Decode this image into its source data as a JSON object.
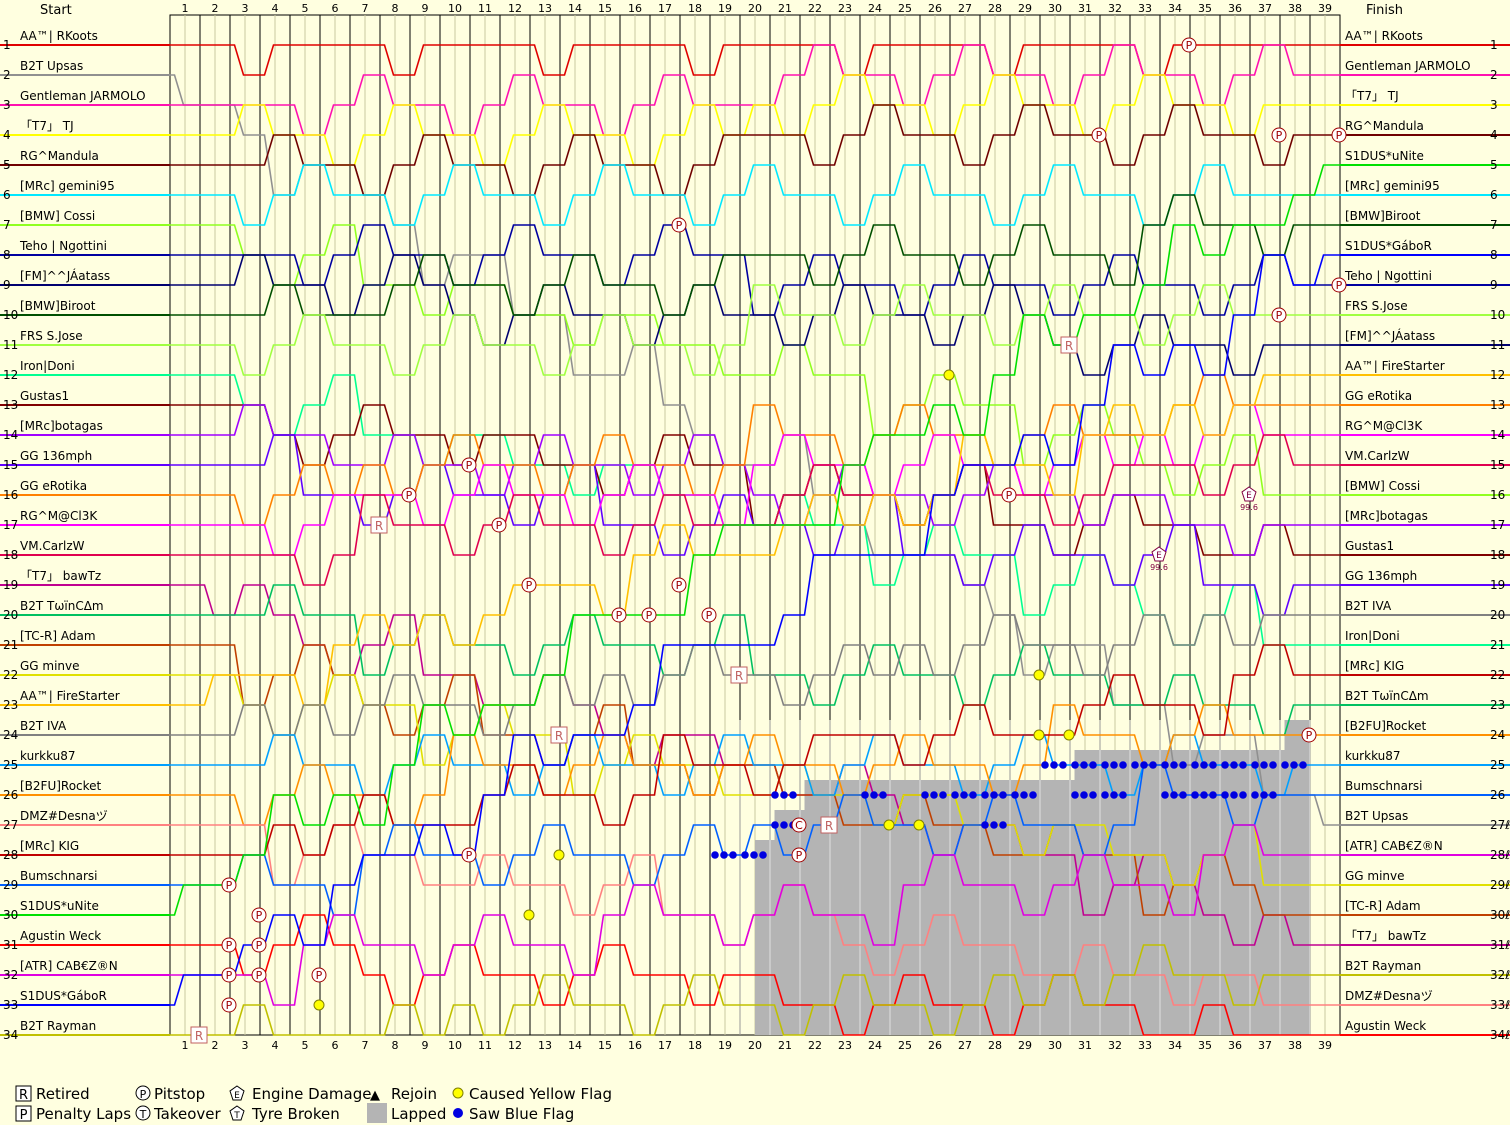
{
  "chart_data": {
    "type": "line",
    "title": "",
    "header_left": "Start",
    "header_right": "Finish",
    "laps": 39,
    "positions": 34,
    "start_order": [
      "AA™| RKoots",
      "B2T Upsas",
      "Gentleman JARMOLO",
      "「T7」 TJ",
      "RG^Mandula",
      "[MRc] gemini95",
      "[BMW] Cossi",
      "Teho | Ngottini",
      "[FM]^^JÁatass",
      "[BMW]Biroot",
      "FRS S.Jose",
      "Iron|Doni",
      "Gustas1",
      "[MRc]botagas",
      "GG 136mph",
      "GG eRotika",
      "RG^M@Cl3K",
      "VM.CarlzW",
      "「T7」 bawTz",
      "B2T TωïnCΔm",
      "[TC-R] Adam",
      "GG minve",
      "AA™| FireStarter",
      "B2T IVA",
      "kurkku87",
      "[B2FU]Rocket",
      "DMZ#Desnaヅ",
      "[MRc] KIG",
      "Bumschnarsi",
      "S1DUS*uNite",
      "Agustin Weck",
      "[ATR] CAB€Z®N",
      "S1DUS*GáboR",
      "B2T Rayman"
    ],
    "finish_order": [
      "AA™| RKoots",
      "Gentleman JARMOLO",
      "「T7」 TJ",
      "RG^Mandula",
      "S1DUS*uNite",
      "[MRc] gemini95",
      "[BMW]Biroot",
      "S1DUS*GáboR",
      "Teho | Ngottini",
      "FRS S.Jose",
      "[FM]^^JÁatass",
      "AA™| FireStarter",
      "GG eRotika",
      "RG^M@Cl3K",
      "VM.CarlzW",
      "[BMW] Cossi",
      "[MRc]botagas",
      "Gustas1",
      "GG 136mph",
      "B2T IVA",
      "Iron|Doni",
      "[MRc] KIG",
      "B2T TωïnCΔm",
      "[B2FU]Rocket",
      "kurkku87",
      "Bumschnarsi",
      "B2T Upsas",
      "[ATR] CAB€Z®N",
      "GG minve",
      "[TC-R] Adam",
      "「T7」 bawTz",
      "B2T Rayman",
      "DMZ#Desnaヅ",
      "Agustin Weck"
    ],
    "finish_position_labels": [
      "1",
      "2",
      "3",
      "4",
      "5",
      "6",
      "7",
      "8",
      "9",
      "10",
      "11",
      "12",
      "13",
      "14",
      "15",
      "16",
      "17",
      "18",
      "19",
      "20",
      "21",
      "22",
      "23",
      "24",
      "25",
      "26",
      "27ℓ",
      "28ℓ",
      "29ℓ",
      "30ℓ",
      "31ℓ",
      "32ℓ",
      "33ℓ",
      "34ℓ"
    ],
    "driver_colors": {
      "AA™| RKoots": "#e00000",
      "B2T Upsas": "#909090",
      "Gentleman JARMOLO": "#ff10b0",
      "「T7」 TJ": "#ffff00",
      "RG^Mandula": "#700000",
      "[MRc] gemini95": "#00e8ff",
      "[BMW] Cossi": "#90ff20",
      "Teho | Ngottini": "#0000a0",
      "[FM]^^JÁatass": "#000070",
      "[BMW]Biroot": "#005000",
      "FRS S.Jose": "#a0ff40",
      "Iron|Doni": "#00ff90",
      "Gustas1": "#800000",
      "[MRc]botagas": "#a000ff",
      "GG 136mph": "#6000ff",
      "GG eRotika": "#ff8000",
      "RG^M@Cl3K": "#ff00ff",
      "VM.CarlzW": "#e00050",
      "「T7」 bawTz": "#c00090",
      "B2T TωïnCΔm": "#00c060",
      "[TC-R] Adam": "#c04000",
      "GG minve": "#e0e000",
      "AA™| FireStarter": "#ffc000",
      "B2T IVA": "#808080",
      "kurkku87": "#00a0ff",
      "[B2FU]Rocket": "#ff9000",
      "DMZ#Desnaヅ": "#ff8080",
      "[MRc] KIG": "#c00000",
      "Bumschnarsi": "#0060ff",
      "S1DUS*uNite": "#00e000",
      "Agustin Weck": "#ff0000",
      "[ATR] CAB€Z®N": "#e000e0",
      "S1DUS*GáboR": "#0000ff",
      "B2T Rayman": "#c0c000"
    },
    "grid": true,
    "lapped_region": {
      "first_lap": 20,
      "last_lap": 38
    },
    "markers": [
      {
        "type": "P",
        "lap": 34,
        "position": 1
      },
      {
        "type": "P",
        "lap": 31,
        "position": 4
      },
      {
        "type": "P",
        "lap": 17,
        "position": 7
      },
      {
        "type": "P",
        "lap": 39,
        "position": 4
      },
      {
        "type": "P",
        "lap": 39,
        "position": 9
      },
      {
        "type": "P",
        "lap": 37,
        "position": 4
      },
      {
        "type": "P",
        "lap": 37,
        "position": 10
      },
      {
        "type": "R",
        "lap": 30,
        "position": 11
      },
      {
        "type": "Y",
        "lap": 26,
        "position": 12
      },
      {
        "type": "P",
        "lap": 10,
        "position": 15
      },
      {
        "type": "P",
        "lap": 8,
        "position": 16
      },
      {
        "type": "P",
        "lap": 28,
        "position": 16
      },
      {
        "type": "E",
        "lap": 36,
        "position": 16,
        "note": "99.6"
      },
      {
        "type": "R",
        "lap": 7,
        "position": 17
      },
      {
        "type": "P",
        "lap": 11,
        "position": 17
      },
      {
        "type": "E",
        "lap": 33,
        "position": 18,
        "note": "99.6"
      },
      {
        "type": "P",
        "lap": 12,
        "position": 19
      },
      {
        "type": "P",
        "lap": 17,
        "position": 19
      },
      {
        "type": "P",
        "lap": 15,
        "position": 20
      },
      {
        "type": "P",
        "lap": 16,
        "position": 20
      },
      {
        "type": "P",
        "lap": 18,
        "position": 20
      },
      {
        "type": "R",
        "lap": 19,
        "position": 22
      },
      {
        "type": "Y",
        "lap": 29,
        "position": 22
      },
      {
        "type": "R",
        "lap": 13,
        "position": 24
      },
      {
        "type": "Y",
        "lap": 29,
        "position": 24
      },
      {
        "type": "Y",
        "lap": 30,
        "position": 24
      },
      {
        "type": "P",
        "lap": 38,
        "position": 24
      },
      {
        "type": "R",
        "lap": 22,
        "position": 27
      },
      {
        "type": "C",
        "lap": 21,
        "position": 27
      },
      {
        "type": "Y",
        "lap": 24,
        "position": 27
      },
      {
        "type": "Y",
        "lap": 25,
        "position": 27
      },
      {
        "type": "P",
        "lap": 10,
        "position": 28
      },
      {
        "type": "Y",
        "lap": 13,
        "position": 28
      },
      {
        "type": "P",
        "lap": 21,
        "position": 28
      },
      {
        "type": "P",
        "lap": 2,
        "position": 29
      },
      {
        "type": "Y",
        "lap": 12,
        "position": 30
      },
      {
        "type": "P",
        "lap": 3,
        "position": 30
      },
      {
        "type": "P",
        "lap": 2,
        "position": 31
      },
      {
        "type": "P",
        "lap": 3,
        "position": 31
      },
      {
        "type": "P",
        "lap": 2,
        "position": 32
      },
      {
        "type": "P",
        "lap": 3,
        "position": 32
      },
      {
        "type": "P",
        "lap": 5,
        "position": 32
      },
      {
        "type": "P",
        "lap": 2,
        "position": 33
      },
      {
        "type": "Y",
        "lap": 5,
        "position": 33
      },
      {
        "type": "Y",
        "lap": 1,
        "position": 34
      },
      {
        "type": "R",
        "lap": 1,
        "position": 34
      }
    ],
    "blue_flags": [
      {
        "position": 25,
        "laps": [
          30,
          31,
          32,
          33,
          34,
          35,
          36,
          37,
          38
        ]
      },
      {
        "position": 26,
        "laps": [
          21,
          24,
          26,
          27,
          28,
          29,
          31,
          32,
          34,
          35,
          36,
          37
        ]
      },
      {
        "position": 27,
        "laps": [
          21,
          28
        ]
      },
      {
        "position": 28,
        "laps": [
          19,
          20
        ]
      }
    ]
  },
  "legend": [
    {
      "symbol": "R",
      "label": "Retired"
    },
    {
      "symbol": "P",
      "label": "Penalty Laps"
    },
    {
      "symbol": "P",
      "label": "Pitstop"
    },
    {
      "symbol": "T",
      "label": "Takeover"
    },
    {
      "symbol": "E",
      "label": "Engine Damage"
    },
    {
      "symbol": "T",
      "label": "Tyre Broken"
    },
    {
      "symbol": "▲",
      "label": "Rejoin"
    },
    {
      "symbol": "",
      "label": "Lapped"
    },
    {
      "symbol": "",
      "label": "Caused Yellow Flag"
    },
    {
      "symbol": "",
      "label": "Saw Blue Flag"
    }
  ]
}
